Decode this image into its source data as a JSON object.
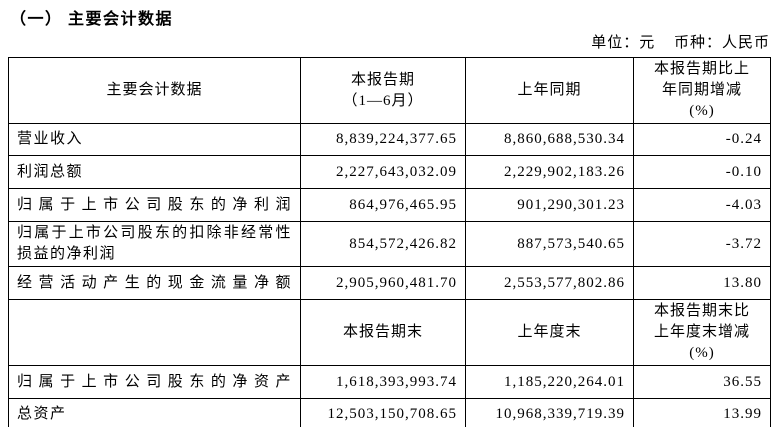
{
  "title": "（一） 主要会计数据",
  "unit_line": {
    "unit": "单位：元",
    "currency": "币种：人民币"
  },
  "table": {
    "header1": {
      "col1": "主要会计数据",
      "col2": "本报告期\n（1—6月）",
      "col3": "上年同期",
      "col4": "本报告期比上\n年同期增减\n(%)"
    },
    "rows": [
      {
        "label": "营业收入",
        "current": "8,839,224,377.65",
        "prior": "8,860,688,530.34",
        "change": "-0.24"
      },
      {
        "label": "利润总额",
        "current": "2,227,643,032.09",
        "prior": "2,229,902,183.26",
        "change": "-0.10"
      },
      {
        "label": "归属于上市公司股东的净利润",
        "current": "864,976,465.95",
        "prior": "901,290,301.23",
        "change": "-4.03"
      },
      {
        "label": "归属于上市公司股东的扣除非经常性损益的净利润",
        "current": "854,572,426.82",
        "prior": "887,573,540.65",
        "change": "-3.72"
      },
      {
        "label": "经营活动产生的现金流量净额",
        "current": "2,905,960,481.70",
        "prior": "2,553,577,802.86",
        "change": "13.80"
      }
    ],
    "header2": {
      "col1": "",
      "col2": "本报告期末",
      "col3": "上年度末",
      "col4": "本报告期末比\n上年度末增减\n(%)"
    },
    "rows2": [
      {
        "label": "归属于上市公司股东的净资产",
        "current": "1,618,393,993.74",
        "prior": "1,185,220,264.01",
        "change": "36.55"
      },
      {
        "label": "总资产",
        "current": "12,503,150,708.65",
        "prior": "10,968,339,719.39",
        "change": "13.99"
      }
    ]
  }
}
